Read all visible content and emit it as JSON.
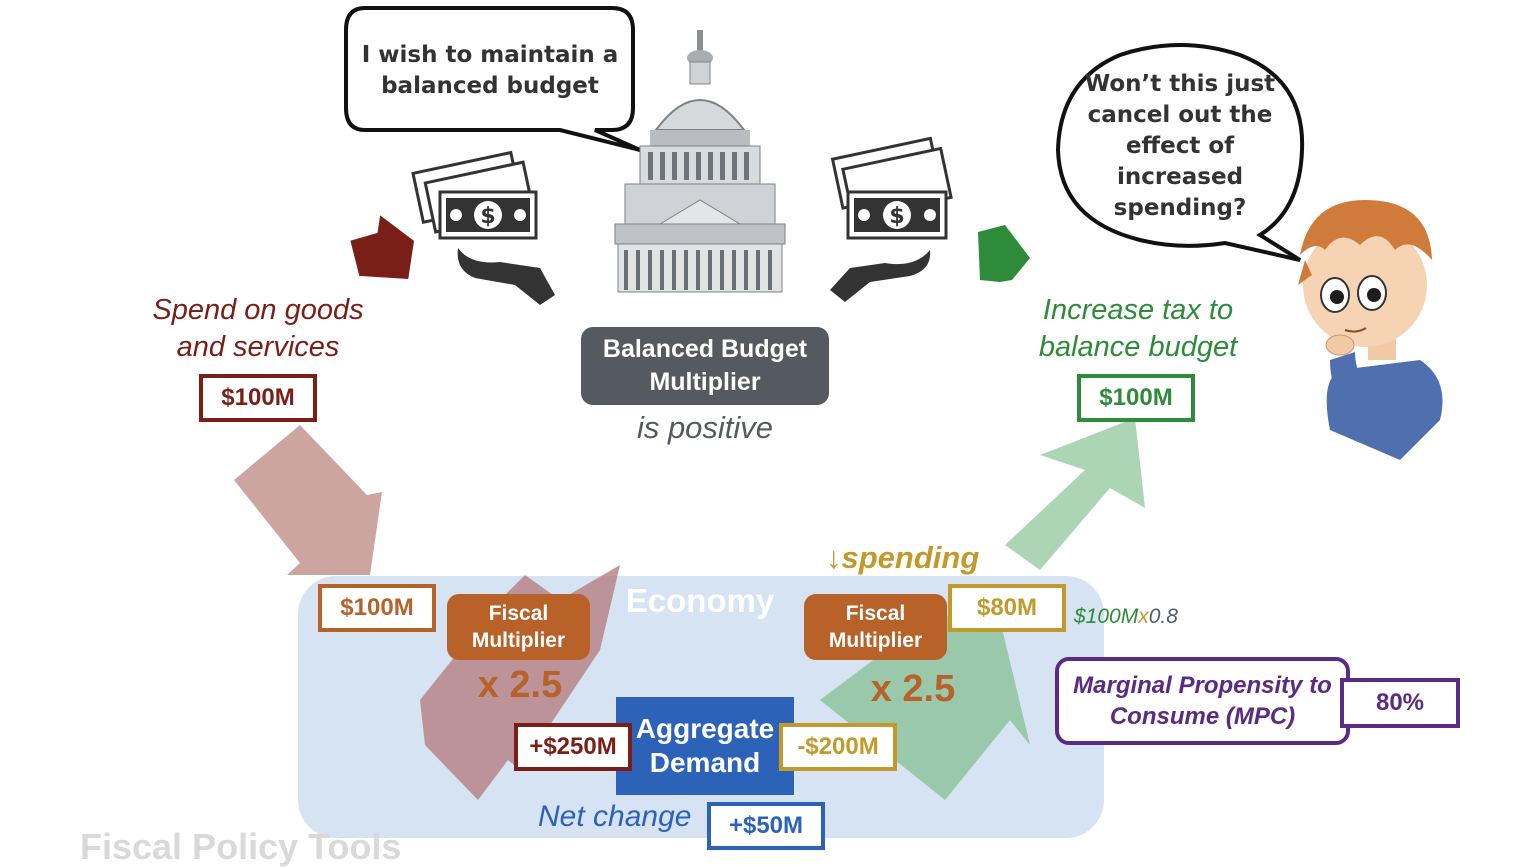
{
  "speech": {
    "government": "I wish to maintain a balanced budget",
    "citizen": "Won’t this just cancel out the effect of increased spending?"
  },
  "icons": {
    "capitol": "capitol-building-icon",
    "money_hand_left": "hand-giving-money-icon",
    "money_hand_right": "hand-receiving-money-icon",
    "boy": "thinking-boy-character",
    "arrow_spend": "arrow-down-left-icon",
    "arrow_tax": "arrow-up-right-icon"
  },
  "center_label": {
    "title": "Balanced Budget Multiplier",
    "subtitle": "is positive"
  },
  "left": {
    "label": "Spend on goods and services",
    "amount": "$100M",
    "color": "#7a1f17"
  },
  "right": {
    "label": "Increase tax to balance budget",
    "amount": "$100M",
    "color": "#2e8b3a"
  },
  "economy": {
    "title": "Economy",
    "left_input": "$100M",
    "left_multiplier_label": "Fiscal Multiplier",
    "left_factor": "x 2.5",
    "right_multiplier_label": "Fiscal Multiplier",
    "right_factor": "x 2.5",
    "spending_label": "↓spending",
    "right_input": "$80M",
    "calc": {
      "a": "$100M",
      "x": "x",
      "b": "0.8"
    },
    "aggregate_demand": "Aggregate Demand",
    "plus": "+$250M",
    "minus": "-$200M",
    "net_label": "Net change",
    "net_value": "+$50M"
  },
  "mpc": {
    "label": "Marginal Propensity to Consume (MPC)",
    "value": "80%"
  },
  "colors": {
    "dark_red": "#7a1f17",
    "green": "#2e8b3a",
    "orange": "#b8622a",
    "gold": "#c29a2c",
    "blue": "#2c63b8",
    "purple": "#5b2a82",
    "economy_bg": "#d5e3f2",
    "dark_gray": "#555a60"
  },
  "footer_text": "Fiscal Policy Tools"
}
